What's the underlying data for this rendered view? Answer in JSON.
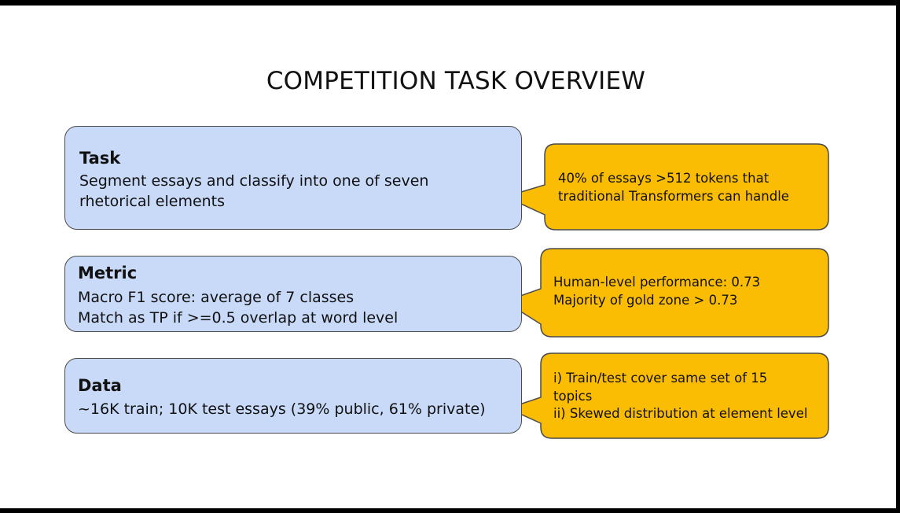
{
  "slide": {
    "title": "COMPETITION TASK OVERVIEW",
    "sections": [
      {
        "heading": "Task",
        "body_lines": [
          "Segment essays and classify into one of seven",
          "rhetorical elements"
        ],
        "callout_lines": [
          "40% of essays >512 tokens that",
          "traditional Transformers can handle"
        ]
      },
      {
        "heading": "Metric",
        "body_lines": [
          "Macro F1 score: average of 7 classes",
          "Match as TP if >=0.5 overlap at word level"
        ],
        "callout_lines": [
          "Human-level performance: 0.73",
          "Majority of gold zone > 0.73"
        ]
      },
      {
        "heading": "Data",
        "body_lines": [
          "~16K train; 10K test essays (39% public, 61% private)"
        ],
        "callout_lines": [
          "i) Train/test cover same set of 15",
          "topics",
          "ii) Skewed distribution at element level"
        ]
      }
    ]
  },
  "colors": {
    "box_fill": "#c9daf8",
    "callout_fill": "#fbbc04",
    "outline": "#4a4a4a",
    "background": "#ffffff",
    "frame": "#000000"
  }
}
